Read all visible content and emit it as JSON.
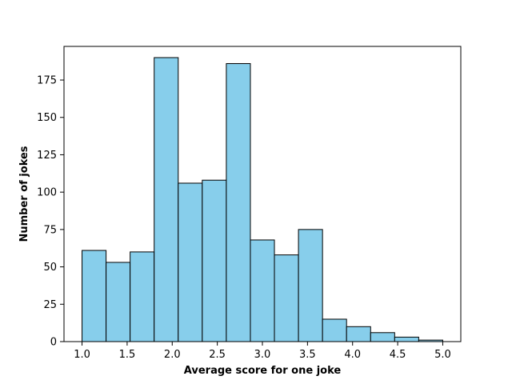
{
  "chart_data": {
    "type": "bar",
    "subtype": "histogram",
    "title": "",
    "xlabel": "Average score for one joke",
    "ylabel": "Number of jokes",
    "xlim": [
      0.8,
      5.2
    ],
    "ylim": [
      0,
      197.5
    ],
    "bin_width": 0.2667,
    "bins": [
      {
        "start": 1.0,
        "end": 1.2667,
        "count": 61
      },
      {
        "start": 1.2667,
        "end": 1.5333,
        "count": 53
      },
      {
        "start": 1.5333,
        "end": 1.8,
        "count": 60
      },
      {
        "start": 1.8,
        "end": 2.0667,
        "count": 190
      },
      {
        "start": 2.0667,
        "end": 2.3333,
        "count": 106
      },
      {
        "start": 2.3333,
        "end": 2.6,
        "count": 108
      },
      {
        "start": 2.6,
        "end": 2.8667,
        "count": 186
      },
      {
        "start": 2.8667,
        "end": 3.1333,
        "count": 68
      },
      {
        "start": 3.1333,
        "end": 3.4,
        "count": 58
      },
      {
        "start": 3.4,
        "end": 3.6667,
        "count": 75
      },
      {
        "start": 3.6667,
        "end": 3.9333,
        "count": 15
      },
      {
        "start": 3.9333,
        "end": 4.2,
        "count": 10
      },
      {
        "start": 4.2,
        "end": 4.4667,
        "count": 6
      },
      {
        "start": 4.4667,
        "end": 4.7333,
        "count": 3
      },
      {
        "start": 4.7333,
        "end": 5.0,
        "count": 1
      }
    ],
    "xticks": [
      1.0,
      1.5,
      2.0,
      2.5,
      3.0,
      3.5,
      4.0,
      4.5,
      5.0
    ],
    "xtick_labels": [
      "1.0",
      "1.5",
      "2.0",
      "2.5",
      "3.0",
      "3.5",
      "4.0",
      "4.5",
      "5.0"
    ],
    "yticks": [
      0,
      25,
      50,
      75,
      100,
      125,
      150,
      175
    ],
    "ytick_labels": [
      "0",
      "25",
      "50",
      "75",
      "100",
      "125",
      "150",
      "175"
    ],
    "grid": false,
    "legend": "none",
    "colors": {
      "bar_fill": "#87CEEB",
      "bar_edge": "#000000",
      "axis": "#000000",
      "background": "#ffffff"
    }
  }
}
